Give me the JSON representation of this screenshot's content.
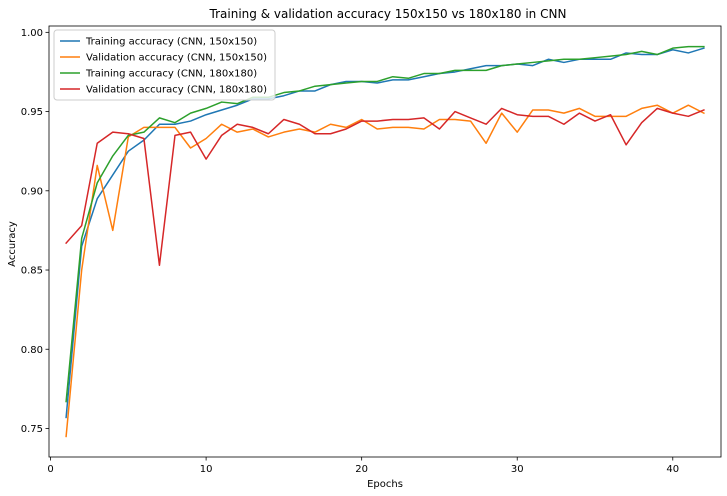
{
  "chart_data": {
    "type": "line",
    "title": "Training & validation accuracy 150x150 vs 180x180 in CNN",
    "xlabel": "Epochs",
    "ylabel": "Accuracy",
    "xlim": [
      -0.1,
      43.1
    ],
    "ylim": [
      0.732,
      1.004
    ],
    "xticks": [
      0,
      10,
      20,
      30,
      40
    ],
    "yticks": [
      0.75,
      0.8,
      0.85,
      0.9,
      0.95,
      1.0
    ],
    "ytick_labels": [
      "0.75",
      "0.80",
      "0.85",
      "0.90",
      "0.95",
      "1.00"
    ],
    "grid": false,
    "legend_position": "upper-left",
    "x": [
      1,
      2,
      3,
      4,
      5,
      6,
      7,
      8,
      9,
      10,
      11,
      12,
      13,
      14,
      15,
      16,
      17,
      18,
      19,
      20,
      21,
      22,
      23,
      24,
      25,
      26,
      27,
      28,
      29,
      30,
      31,
      32,
      33,
      34,
      35,
      36,
      37,
      38,
      39,
      40,
      41,
      42
    ],
    "series": [
      {
        "name": "Training accuracy (CNN, 150x150)",
        "color": "#1f77b4",
        "values": [
          0.757,
          0.865,
          0.895,
          0.91,
          0.925,
          0.932,
          0.942,
          0.942,
          0.944,
          0.948,
          0.951,
          0.954,
          0.958,
          0.958,
          0.96,
          0.963,
          0.963,
          0.967,
          0.969,
          0.969,
          0.968,
          0.97,
          0.97,
          0.972,
          0.974,
          0.975,
          0.977,
          0.979,
          0.979,
          0.98,
          0.979,
          0.983,
          0.981,
          0.983,
          0.983,
          0.983,
          0.987,
          0.986,
          0.986,
          0.989,
          0.987,
          0.99
        ]
      },
      {
        "name": "Validation accuracy (CNN, 150x150)",
        "color": "#ff7f0e",
        "values": [
          0.745,
          0.85,
          0.916,
          0.875,
          0.934,
          0.94,
          0.94,
          0.94,
          0.927,
          0.933,
          0.942,
          0.937,
          0.939,
          0.934,
          0.937,
          0.939,
          0.937,
          0.942,
          0.94,
          0.945,
          0.939,
          0.94,
          0.94,
          0.939,
          0.945,
          0.945,
          0.944,
          0.93,
          0.949,
          0.937,
          0.951,
          0.951,
          0.949,
          0.952,
          0.947,
          0.947,
          0.947,
          0.952,
          0.954,
          0.949,
          0.954,
          0.949
        ]
      },
      {
        "name": "Training accuracy (CNN, 180x180)",
        "color": "#2ca02c",
        "values": [
          0.767,
          0.87,
          0.905,
          0.922,
          0.935,
          0.937,
          0.946,
          0.943,
          0.949,
          0.952,
          0.956,
          0.955,
          0.959,
          0.959,
          0.962,
          0.963,
          0.966,
          0.967,
          0.968,
          0.969,
          0.969,
          0.972,
          0.971,
          0.974,
          0.974,
          0.976,
          0.976,
          0.976,
          0.979,
          0.98,
          0.981,
          0.982,
          0.983,
          0.983,
          0.984,
          0.985,
          0.986,
          0.988,
          0.986,
          0.99,
          0.991,
          0.991
        ]
      },
      {
        "name": "Validation accuracy (CNN, 180x180)",
        "color": "#d62728",
        "values": [
          0.867,
          0.878,
          0.93,
          0.937,
          0.936,
          0.933,
          0.853,
          0.935,
          0.937,
          0.92,
          0.935,
          0.942,
          0.94,
          0.936,
          0.945,
          0.942,
          0.936,
          0.936,
          0.939,
          0.944,
          0.944,
          0.945,
          0.945,
          0.946,
          0.939,
          0.95,
          0.946,
          0.942,
          0.952,
          0.948,
          0.947,
          0.947,
          0.942,
          0.949,
          0.944,
          0.948,
          0.929,
          0.943,
          0.952,
          0.949,
          0.947,
          0.951
        ]
      }
    ]
  }
}
